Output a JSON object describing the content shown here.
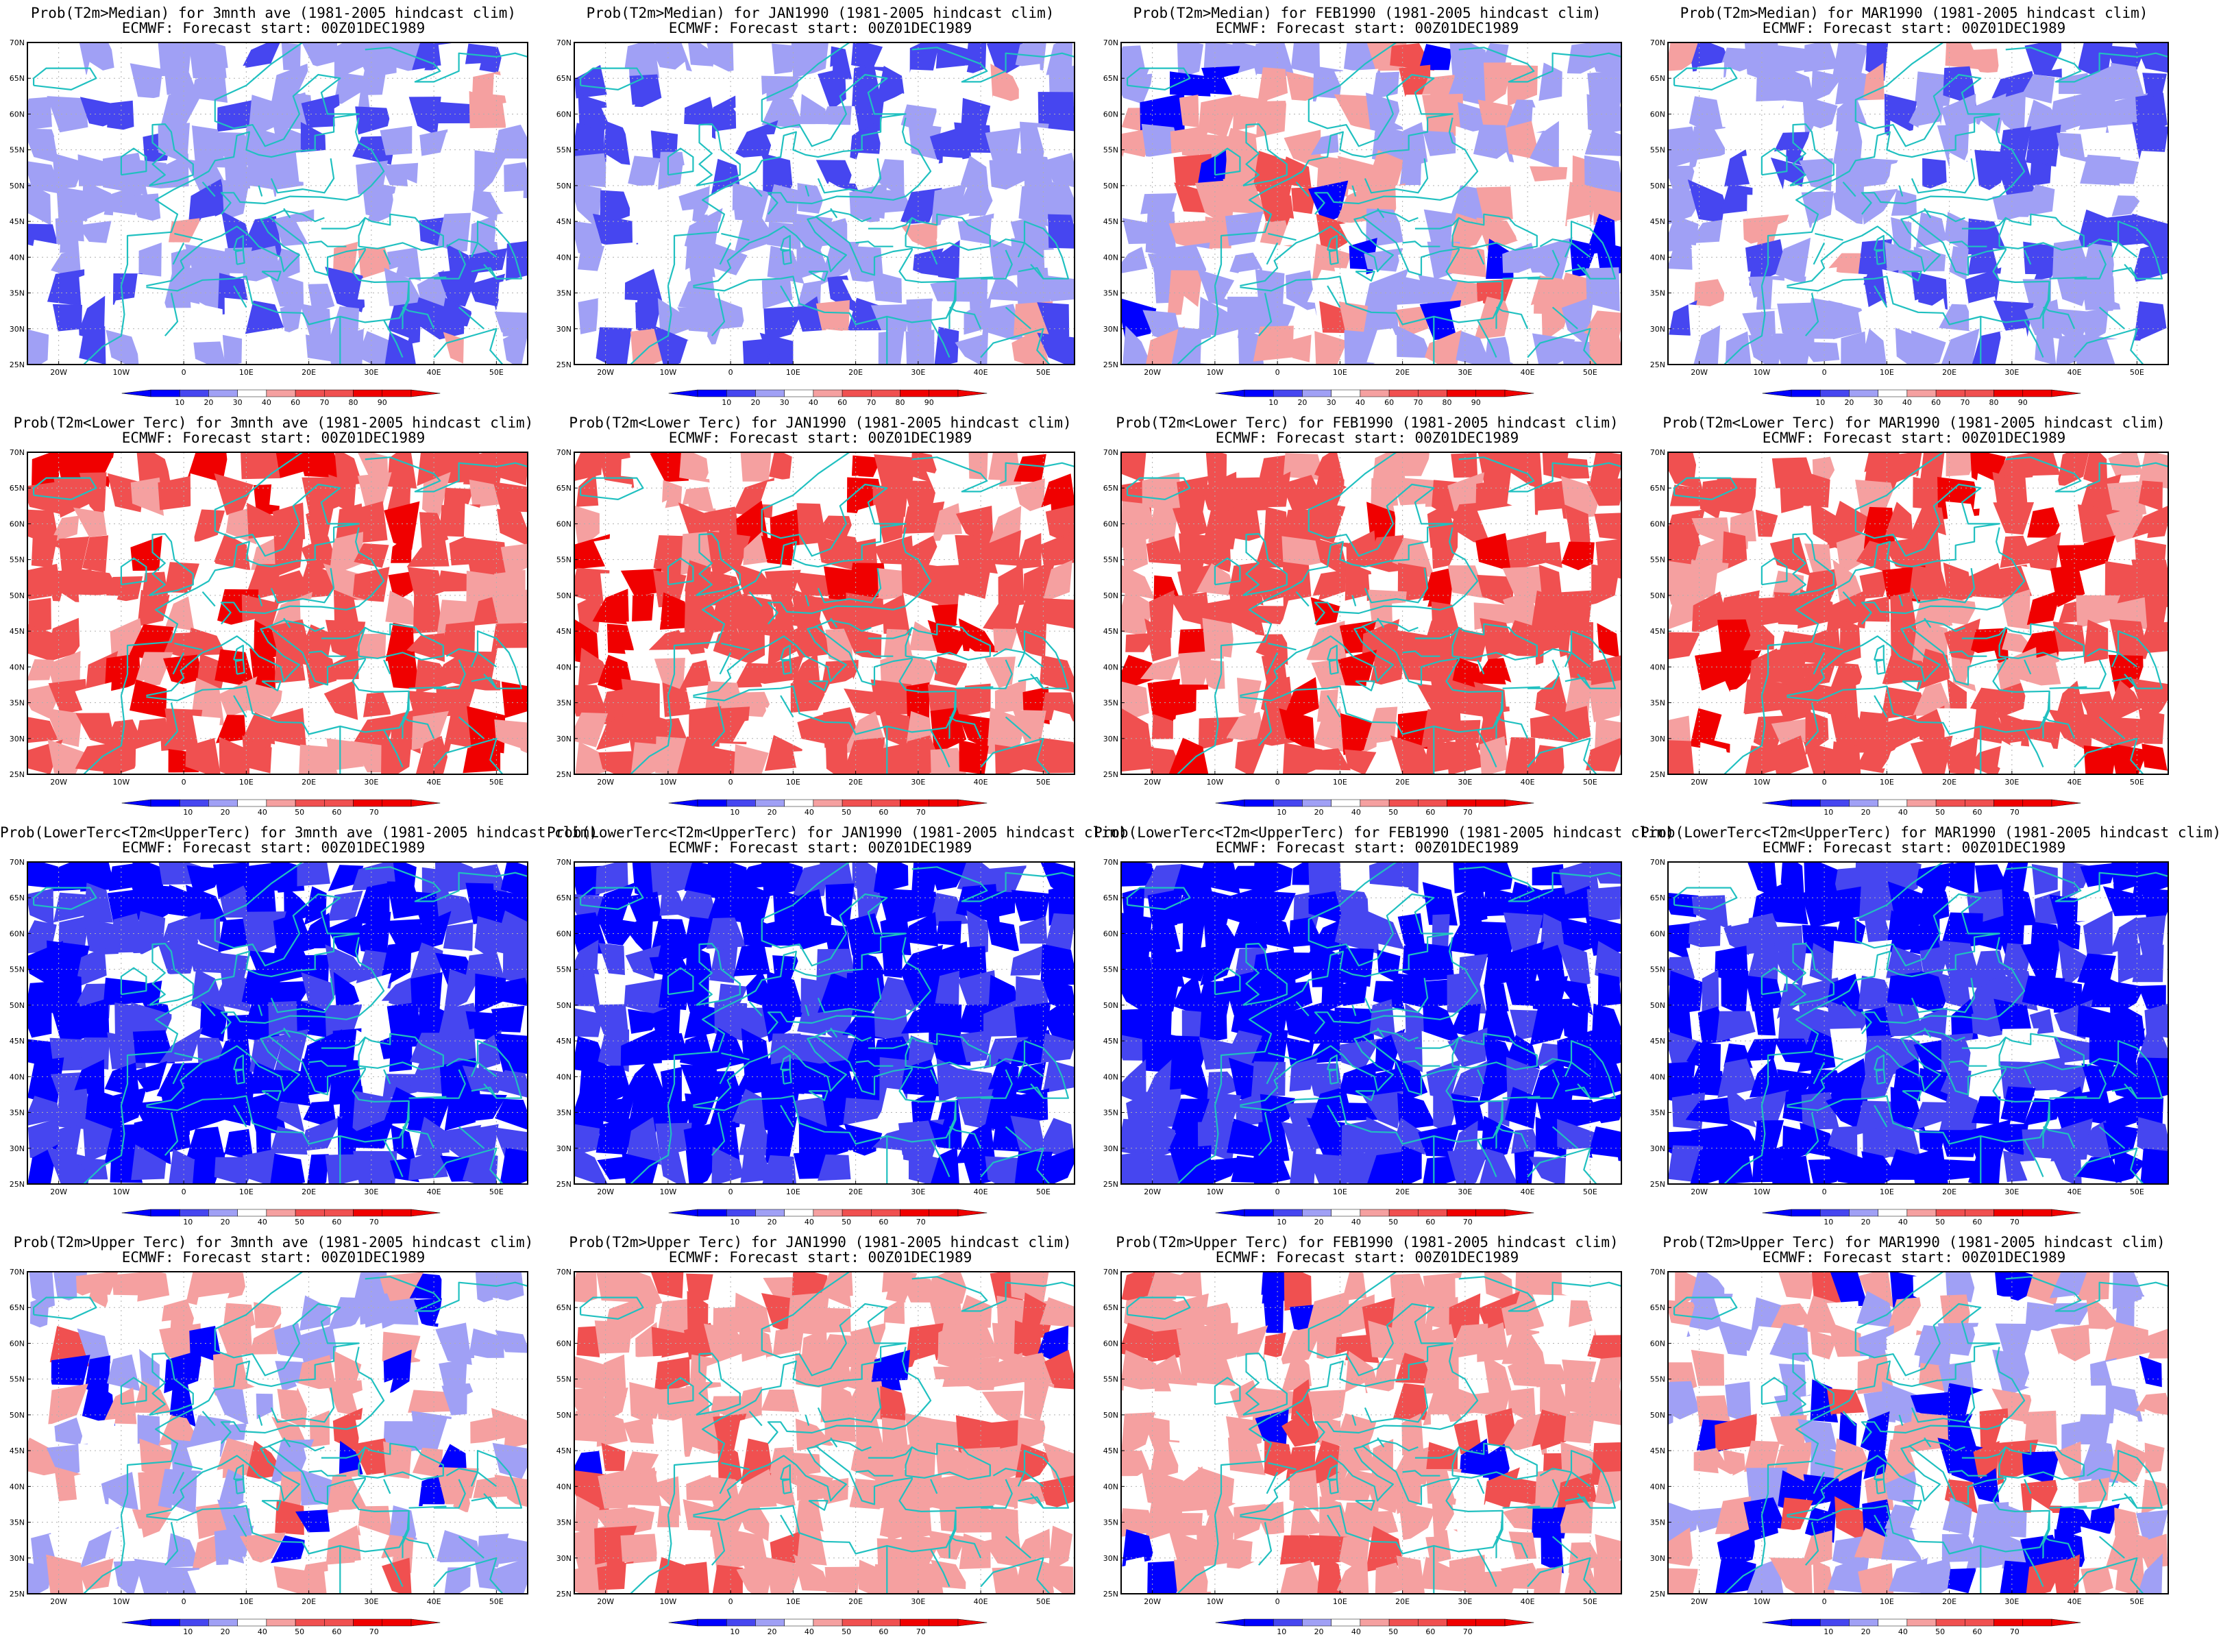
{
  "figure": {
    "rows": [
      {
        "variable": "Prob(T2m>Median)",
        "colorbar_ticks": [
          "10",
          "20",
          "30",
          "40",
          "60",
          "70",
          "80",
          "90"
        ]
      },
      {
        "variable": "Prob(T2m<Lower Terc)",
        "colorbar_ticks": [
          "10",
          "20",
          "40",
          "50",
          "60",
          "70"
        ]
      },
      {
        "variable": "Prob(LowerTerc<T2m<UpperTerc)",
        "colorbar_ticks": [
          "10",
          "20",
          "40",
          "50",
          "60",
          "70"
        ]
      },
      {
        "variable": "Prob(T2m>Upper Terc)",
        "colorbar_ticks": [
          "10",
          "20",
          "40",
          "50",
          "60",
          "70"
        ]
      }
    ],
    "panels": [
      {
        "title": "Prob(T2m>Median) for 3mnth ave (1981-2005 hindcast clim)",
        "subtitle": "ECMWF: Forecast start: 00Z01DEC1989",
        "dominant": "blue-light"
      },
      {
        "title": "Prob(T2m>Median) for JAN1990 (1981-2005 hindcast clim)",
        "subtitle": "ECMWF: Forecast start: 00Z01DEC1989",
        "dominant": "blue-light"
      },
      {
        "title": "Prob(T2m>Median) for FEB1990 (1981-2005 hindcast clim)",
        "subtitle": "ECMWF: Forecast start: 00Z01DEC1989",
        "dominant": "mixed"
      },
      {
        "title": "Prob(T2m>Median) for MAR1990 (1981-2005 hindcast clim)",
        "subtitle": "ECMWF: Forecast start: 00Z01DEC1989",
        "dominant": "blue-light"
      },
      {
        "title": "Prob(T2m<Lower Terc) for 3mnth ave (1981-2005 hindcast clim)",
        "subtitle": "ECMWF: Forecast start: 00Z01DEC1989",
        "dominant": "red"
      },
      {
        "title": "Prob(T2m<Lower Terc) for JAN1990 (1981-2005 hindcast clim)",
        "subtitle": "ECMWF: Forecast start: 00Z01DEC1989",
        "dominant": "red"
      },
      {
        "title": "Prob(T2m<Lower Terc) for FEB1990 (1981-2005 hindcast clim)",
        "subtitle": "ECMWF: Forecast start: 00Z01DEC1989",
        "dominant": "red"
      },
      {
        "title": "Prob(T2m<Lower Terc) for MAR1990 (1981-2005 hindcast clim)",
        "subtitle": "ECMWF: Forecast start: 00Z01DEC1989",
        "dominant": "red"
      },
      {
        "title": "Prob(LowerTerc<T2m<UpperTerc) for 3mnth ave (1981-2005 hindcast clim)",
        "subtitle": "ECMWF: Forecast start: 00Z01DEC1989",
        "dominant": "blue"
      },
      {
        "title": "Prob(LowerTerc<T2m<UpperTerc) for JAN1990 (1981-2005 hindcast clim)",
        "subtitle": "ECMWF: Forecast start: 00Z01DEC1989",
        "dominant": "blue"
      },
      {
        "title": "Prob(LowerTerc<T2m<UpperTerc) for FEB1990 (1981-2005 hindcast clim)",
        "subtitle": "ECMWF: Forecast start: 00Z01DEC1989",
        "dominant": "blue"
      },
      {
        "title": "Prob(LowerTerc<T2m<UpperTerc) for MAR1990 (1981-2005 hindcast clim)",
        "subtitle": "ECMWF: Forecast start: 00Z01DEC1989",
        "dominant": "blue"
      },
      {
        "title": "Prob(T2m>Upper Terc) for 3mnth ave (1981-2005 hindcast clim)",
        "subtitle": "ECMWF: Forecast start: 00Z01DEC1989",
        "dominant": "mixed"
      },
      {
        "title": "Prob(T2m>Upper Terc) for JAN1990 (1981-2005 hindcast clim)",
        "subtitle": "ECMWF: Forecast start: 00Z01DEC1989",
        "dominant": "red-light"
      },
      {
        "title": "Prob(T2m>Upper Terc) for FEB1990 (1981-2005 hindcast clim)",
        "subtitle": "ECMWF: Forecast start: 00Z01DEC1989",
        "dominant": "red-light"
      },
      {
        "title": "Prob(T2m>Upper Terc) for MAR1990 (1981-2005 hindcast clim)",
        "subtitle": "ECMWF: Forecast start: 00Z01DEC1989",
        "dominant": "mixed"
      }
    ],
    "lat_labels": [
      "70N",
      "65N",
      "60N",
      "55N",
      "50N",
      "45N",
      "40N",
      "35N",
      "30N",
      "25N"
    ],
    "lon_labels": [
      "20W",
      "10W",
      "0",
      "10E",
      "20E",
      "30E",
      "40E",
      "50E"
    ],
    "colors": {
      "blue_dark": "#0000ff",
      "blue_mid": "#4646f0",
      "blue_light": "#a0a0f5",
      "red_light": "#f5a0a0",
      "red_mid": "#f05050",
      "red_dark": "#f00000",
      "coastline": "#20c0c0",
      "frame": "#000000"
    }
  }
}
